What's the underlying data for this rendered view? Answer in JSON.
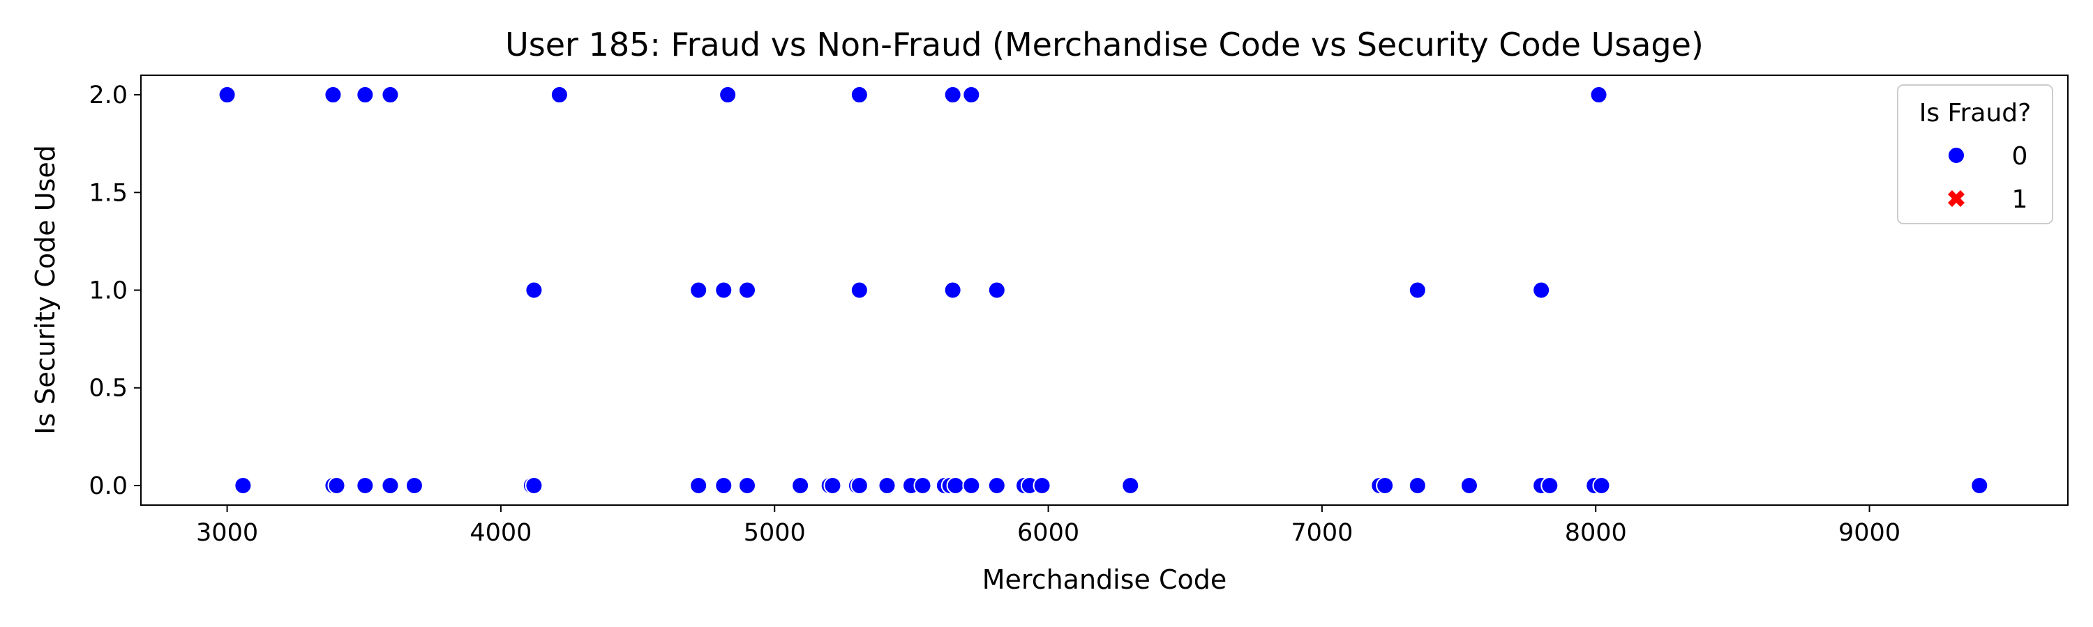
{
  "chart_data": {
    "type": "scatter",
    "title": "User 185: Fraud vs Non-Fraud (Merchandise Code vs Security Code Usage)",
    "xlabel": "Merchandise Code",
    "ylabel": "Is Security Code Used",
    "xlim": [
      2685,
      9725
    ],
    "ylim": [
      -0.1,
      2.1
    ],
    "xticks": [
      3000,
      4000,
      5000,
      6000,
      7000,
      8000,
      9000
    ],
    "yticks": [
      0.0,
      0.5,
      1.0,
      1.5,
      2.0
    ],
    "xtick_labels": [
      "3000",
      "4000",
      "5000",
      "6000",
      "7000",
      "8000",
      "9000"
    ],
    "ytick_labels": [
      "0.0",
      "0.5",
      "1.0",
      "1.5",
      "2.0"
    ],
    "grid": false,
    "legend": {
      "title": "Is Fraud?",
      "placement": "top-right",
      "entries": [
        {
          "label": "0",
          "marker": "circle",
          "color": "#0000ff"
        },
        {
          "label": "1",
          "marker": "x",
          "color": "#ff0000"
        }
      ]
    },
    "series": [
      {
        "name": "0",
        "color": "#0000ff",
        "points": [
          [
            3000,
            2
          ],
          [
            3387,
            2
          ],
          [
            3504,
            2
          ],
          [
            3596,
            2
          ],
          [
            4214,
            2
          ],
          [
            4829,
            2
          ],
          [
            5310,
            2
          ],
          [
            5651,
            2
          ],
          [
            5719,
            2
          ],
          [
            8011,
            2
          ],
          [
            4121,
            1
          ],
          [
            4722,
            1
          ],
          [
            4814,
            1
          ],
          [
            4900,
            1
          ],
          [
            5310,
            1
          ],
          [
            5651,
            1
          ],
          [
            5812,
            1
          ],
          [
            7349,
            1
          ],
          [
            7801,
            1
          ],
          [
            3058,
            0
          ],
          [
            3387,
            0
          ],
          [
            3400,
            0
          ],
          [
            3504,
            0
          ],
          [
            3596,
            0
          ],
          [
            3684,
            0
          ],
          [
            4112,
            0
          ],
          [
            4121,
            0
          ],
          [
            4722,
            0
          ],
          [
            4814,
            0
          ],
          [
            4900,
            0
          ],
          [
            5094,
            0
          ],
          [
            5200,
            0
          ],
          [
            5212,
            0
          ],
          [
            5300,
            0
          ],
          [
            5310,
            0
          ],
          [
            5411,
            0
          ],
          [
            5499,
            0
          ],
          [
            5541,
            0
          ],
          [
            5621,
            0
          ],
          [
            5641,
            0
          ],
          [
            5661,
            0
          ],
          [
            5719,
            0
          ],
          [
            5812,
            0
          ],
          [
            5912,
            0
          ],
          [
            5932,
            0
          ],
          [
            5977,
            0
          ],
          [
            6300,
            0
          ],
          [
            7210,
            0
          ],
          [
            7230,
            0
          ],
          [
            7349,
            0
          ],
          [
            7538,
            0
          ],
          [
            7801,
            0
          ],
          [
            7832,
            0
          ],
          [
            7995,
            0
          ],
          [
            8021,
            0
          ],
          [
            9402,
            0
          ]
        ]
      },
      {
        "name": "1",
        "color": "#ff0000",
        "points": []
      }
    ]
  }
}
